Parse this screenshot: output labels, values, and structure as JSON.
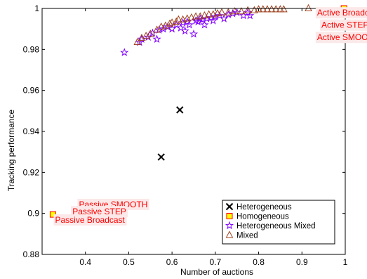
{
  "chart_data": {
    "type": "scatter",
    "xlabel": "Number of auctions",
    "ylabel": "Tracking performance",
    "xlim": [
      0.3,
      1.0
    ],
    "ylim": [
      0.88,
      1.0
    ],
    "xticks": [
      0.4,
      0.5,
      0.6,
      0.7,
      0.8,
      0.9,
      1.0
    ],
    "xtick_labels": [
      "0.4",
      "0.5",
      "0.6",
      "0.7",
      "0.8",
      "0.9",
      "1"
    ],
    "yticks": [
      0.88,
      0.9,
      0.92,
      0.94,
      0.96,
      0.98,
      1.0
    ],
    "ytick_labels": [
      "0.88",
      "0.9",
      "0.92",
      "0.94",
      "0.96",
      "0.98",
      "1"
    ],
    "grid": false,
    "legend_position": "bottom-right",
    "series": [
      {
        "name": "Heterogeneous",
        "marker": "x",
        "color": "#000000",
        "points": [
          [
            0.575,
            0.9275
          ],
          [
            0.618,
            0.9505
          ]
        ]
      },
      {
        "name": "Homogeneous",
        "marker": "square",
        "color": "#ff0000",
        "fill": "#ffff00",
        "points": [
          [
            0.325,
            0.8995
          ],
          [
            0.997,
            1.0
          ]
        ]
      },
      {
        "name": "Heterogeneous Mixed",
        "marker": "star",
        "color": "#7f00ff",
        "points": [
          [
            0.49,
            0.9785
          ],
          [
            0.525,
            0.9835
          ],
          [
            0.53,
            0.985
          ],
          [
            0.545,
            0.986
          ],
          [
            0.555,
            0.988
          ],
          [
            0.565,
            0.985
          ],
          [
            0.57,
            0.9895
          ],
          [
            0.58,
            0.99
          ],
          [
            0.59,
            0.991
          ],
          [
            0.6,
            0.99
          ],
          [
            0.61,
            0.992
          ],
          [
            0.62,
            0.9905
          ],
          [
            0.625,
            0.993
          ],
          [
            0.63,
            0.989
          ],
          [
            0.635,
            0.9935
          ],
          [
            0.64,
            0.992
          ],
          [
            0.65,
            0.9875
          ],
          [
            0.655,
            0.994
          ],
          [
            0.66,
            0.9935
          ],
          [
            0.665,
            0.995
          ],
          [
            0.67,
            0.9945
          ],
          [
            0.675,
            0.992
          ],
          [
            0.68,
            0.995
          ],
          [
            0.69,
            0.9955
          ],
          [
            0.695,
            0.994
          ],
          [
            0.7,
            0.996
          ],
          [
            0.71,
            0.9965
          ],
          [
            0.72,
            0.995
          ],
          [
            0.73,
            0.997
          ],
          [
            0.74,
            0.9975
          ],
          [
            0.75,
            0.998
          ],
          [
            0.765,
            0.9965
          ],
          [
            0.775,
            0.998
          ],
          [
            0.78,
            0.9965
          ]
        ]
      },
      {
        "name": "Mixed",
        "marker": "triangle",
        "color": "#a0421e",
        "points": [
          [
            0.52,
            0.9835
          ],
          [
            0.53,
            0.9855
          ],
          [
            0.54,
            0.9865
          ],
          [
            0.55,
            0.9875
          ],
          [
            0.565,
            0.9895
          ],
          [
            0.575,
            0.991
          ],
          [
            0.585,
            0.9915
          ],
          [
            0.595,
            0.9925
          ],
          [
            0.6,
            0.993
          ],
          [
            0.61,
            0.9935
          ],
          [
            0.615,
            0.9945
          ],
          [
            0.625,
            0.9945
          ],
          [
            0.635,
            0.995
          ],
          [
            0.645,
            0.9955
          ],
          [
            0.655,
            0.996
          ],
          [
            0.665,
            0.996
          ],
          [
            0.675,
            0.9965
          ],
          [
            0.685,
            0.997
          ],
          [
            0.695,
            0.997
          ],
          [
            0.705,
            0.9975
          ],
          [
            0.715,
            0.998
          ],
          [
            0.73,
            0.998
          ],
          [
            0.745,
            0.9985
          ],
          [
            0.76,
            0.9985
          ],
          [
            0.775,
            0.999
          ],
          [
            0.79,
            0.999
          ],
          [
            0.8,
            0.9995
          ],
          [
            0.81,
            0.9995
          ],
          [
            0.82,
            0.9995
          ],
          [
            0.83,
            0.9995
          ],
          [
            0.84,
            0.9995
          ],
          [
            0.85,
            0.9995
          ],
          [
            0.858,
            0.9995
          ],
          [
            0.915,
            1.0
          ]
        ]
      }
    ],
    "annotations": [
      {
        "id": "active-broadcast",
        "text": "Active Broadcast",
        "x": 0.935,
        "y": 0.9965
      },
      {
        "id": "active-step",
        "text": "Active STEP",
        "x": 0.945,
        "y": 0.9905
      },
      {
        "id": "active-smooth",
        "text": "Active SMOOTH",
        "x": 0.935,
        "y": 0.9845
      },
      {
        "id": "passive-smooth",
        "text": "Passive SMOOTH",
        "x": 0.385,
        "y": 0.903
      },
      {
        "id": "passive-step",
        "text": "Passive STEP",
        "x": 0.37,
        "y": 0.8995
      },
      {
        "id": "passive-broadcast",
        "text": "Passive Broadcast",
        "x": 0.33,
        "y": 0.8955
      }
    ],
    "annotation_style": {
      "text_color": "#ff0000",
      "background": "#fbe8e8"
    }
  }
}
